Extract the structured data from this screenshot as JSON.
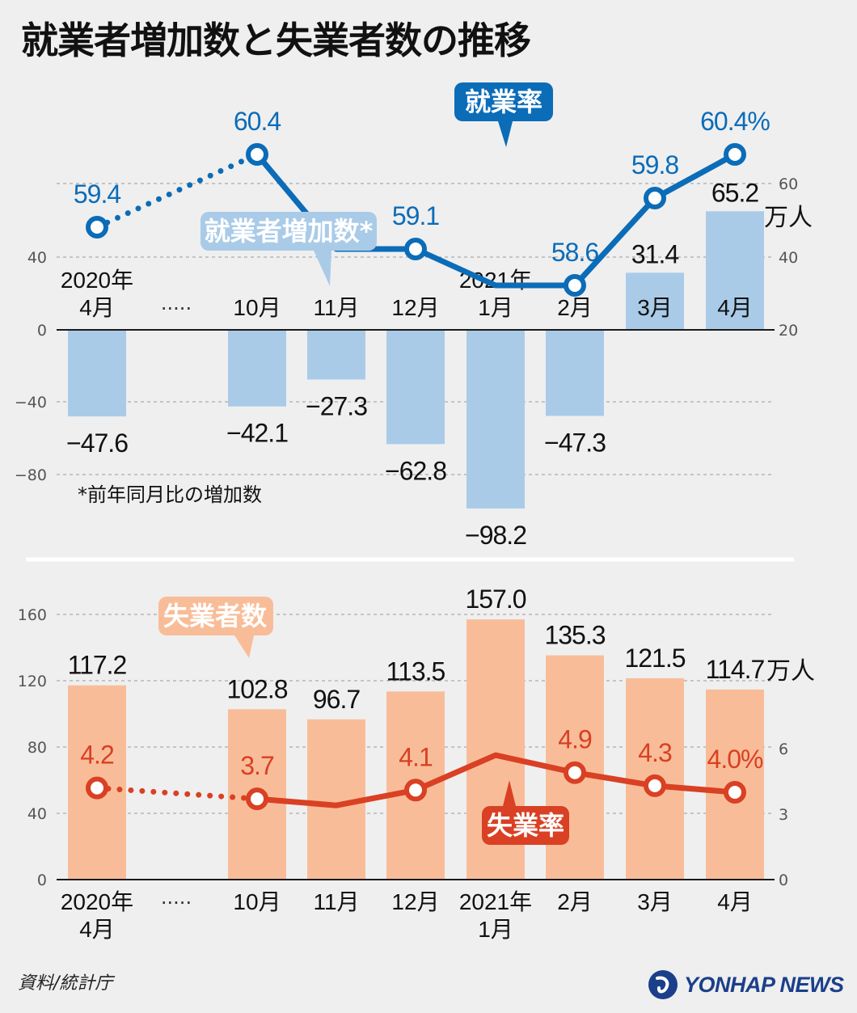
{
  "title": "就業者増加数と失業者数の推移",
  "source": "資料/統計庁",
  "logo_text": "YONHAP NEWS",
  "colors": {
    "employment_line": "#0b6cb8",
    "employment_bars": "#a9cbe8",
    "unemployment_line": "#d94024",
    "unemployment_bars": "#f8bd98",
    "background": "#efefef"
  },
  "chart_data": [
    {
      "type": "bar+line",
      "title": "就業者増加数",
      "categories": [
        "2020年\n4月",
        "10月",
        "11月",
        "12月",
        "2021年\n1月",
        "2月",
        "3月",
        "4月"
      ],
      "ellipsis": "·····",
      "bar_series": {
        "name": "就業者増加数*",
        "unit": "万人",
        "values": [
          -47.6,
          -42.1,
          -27.3,
          -62.8,
          -98.2,
          -47.3,
          31.4,
          65.2
        ],
        "labels": [
          "−47.6",
          "−42.1",
          "−27.3",
          "−62.8",
          "−98.2",
          "−47.3",
          "31.4",
          "65.2"
        ]
      },
      "line_series": {
        "name": "就業率",
        "unit": "%",
        "values": [
          59.4,
          60.4,
          59.1,
          59.1,
          58.6,
          58.6,
          59.8,
          60.4
        ],
        "labels": [
          "59.4",
          "60.4",
          "",
          "59.1",
          "",
          "58.6",
          "59.8",
          "60.4%"
        ],
        "markers": [
          true,
          true,
          false,
          true,
          false,
          true,
          true,
          true
        ],
        "dotted_segment": [
          0,
          1
        ]
      },
      "left_axis": {
        "ticks": [
          40,
          0,
          -40,
          -80
        ],
        "tick_labels": [
          "40",
          "0",
          "−40",
          "−80"
        ]
      },
      "right_axis": {
        "ticks": [
          60,
          40,
          20
        ],
        "tick_labels": [
          "60",
          "40",
          "20"
        ]
      },
      "note": "*前年同月比の増加数"
    },
    {
      "type": "bar+line",
      "title": "失業者数",
      "categories": [
        "2020年\n4月",
        "10月",
        "11月",
        "12月",
        "2021年\n1月",
        "2月",
        "3月",
        "4月"
      ],
      "ellipsis": "·····",
      "bar_series": {
        "name": "失業者数",
        "unit": "万人",
        "values": [
          117.2,
          102.8,
          96.7,
          113.5,
          157.0,
          135.3,
          121.5,
          114.7
        ],
        "labels": [
          "117.2",
          "102.8",
          "96.7",
          "113.5",
          "157.0",
          "135.3",
          "121.5",
          "114.7"
        ]
      },
      "line_series": {
        "name": "失業率",
        "unit": "%",
        "values": [
          4.2,
          3.7,
          3.4,
          4.1,
          5.7,
          4.9,
          4.3,
          4.0
        ],
        "labels": [
          "4.2",
          "3.7",
          "",
          "4.1",
          "",
          "4.9",
          "4.3",
          "4.0%"
        ],
        "markers": [
          true,
          true,
          false,
          true,
          false,
          true,
          true,
          true
        ],
        "dotted_segment": [
          0,
          1
        ]
      },
      "left_axis": {
        "ticks": [
          160,
          120,
          80,
          40,
          0
        ],
        "tick_labels": [
          "160",
          "120",
          "80",
          "40",
          "0"
        ]
      },
      "right_axis": {
        "ticks": [
          6,
          3,
          0
        ],
        "tick_labels": [
          "6",
          "3",
          "0"
        ]
      }
    }
  ],
  "ellipsis": "·····",
  "unit_bars": "万人",
  "cat_top": [
    "2020年",
    "4月",
    "10月",
    "11月",
    "12月",
    "2021年",
    "1月",
    "2月",
    "3月",
    "4月"
  ]
}
